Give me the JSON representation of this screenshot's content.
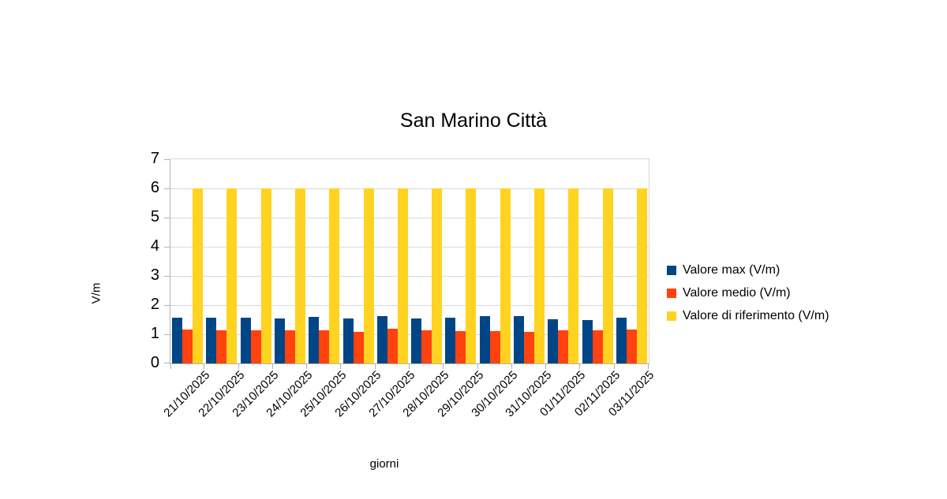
{
  "title": "San Marino Città",
  "chart_data": {
    "type": "bar",
    "title": "San Marino Città",
    "xlabel": "giorni",
    "ylabel": "V/m",
    "ylim": [
      0,
      7
    ],
    "ytick_step": 1,
    "yticks": [
      0,
      1,
      2,
      3,
      4,
      5,
      6,
      7
    ],
    "grid": true,
    "legend_position": "right",
    "categories": [
      "21/10/2025",
      "22/10/2025",
      "23/10/2025",
      "24/10/2025",
      "25/10/2025",
      "26/10/2025",
      "27/10/2025",
      "28/10/2025",
      "29/10/2025",
      "30/10/2025",
      "31/10/2025",
      "01/11/2025",
      "02/11/2025",
      "03/11/2025"
    ],
    "series": [
      {
        "name": "Valore max (V/m)",
        "color": "#004586",
        "values": [
          1.58,
          1.56,
          1.58,
          1.55,
          1.6,
          1.54,
          1.61,
          1.54,
          1.57,
          1.61,
          1.63,
          1.51,
          1.49,
          1.57
        ]
      },
      {
        "name": "Valore medio (V/m)",
        "color": "#FF420E",
        "values": [
          1.15,
          1.14,
          1.14,
          1.14,
          1.14,
          1.08,
          1.18,
          1.14,
          1.12,
          1.12,
          1.08,
          1.14,
          1.13,
          1.15
        ]
      },
      {
        "name": "Valore di riferimento (V/m)",
        "color": "#FFD320",
        "values": [
          6,
          6,
          6,
          6,
          6,
          6,
          6,
          6,
          6,
          6,
          6,
          6,
          6,
          6
        ]
      }
    ],
    "colors": {
      "gridline": "#d9d9d9",
      "axis": "#b3b3b3",
      "text": "#000000",
      "background": "#ffffff"
    }
  }
}
